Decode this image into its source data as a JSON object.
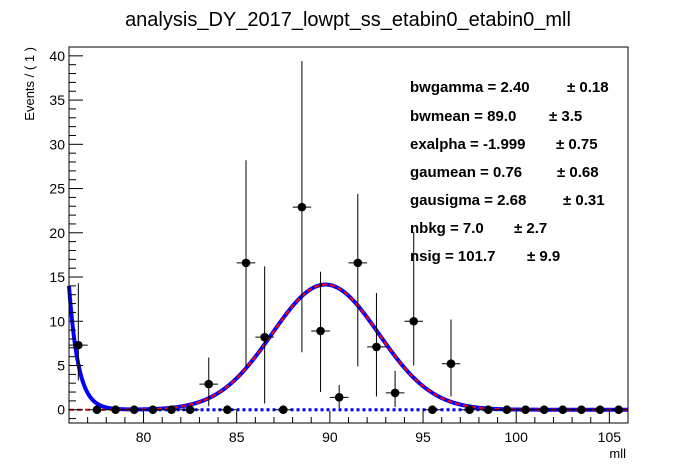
{
  "chart_data": {
    "type": "scatter",
    "title": "analysis_DY_2017_lowpt_ss_etabin0_etabin0_mll",
    "xlabel": "mll",
    "ylabel": "Events / ( 1 )",
    "xlim": [
      76,
      106
    ],
    "ylim": [
      -1.5,
      41
    ],
    "x_ticks": [
      80,
      85,
      90,
      95,
      100,
      105
    ],
    "y_ticks": [
      0,
      5,
      10,
      15,
      20,
      25,
      30,
      35,
      40
    ],
    "grid": false,
    "points": {
      "x": [
        76.5,
        77.5,
        78.5,
        79.5,
        80.5,
        81.5,
        82.5,
        83.5,
        84.5,
        85.5,
        86.5,
        87.5,
        88.5,
        89.5,
        90.5,
        91.5,
        92.5,
        93.5,
        94.5,
        95.5,
        96.5,
        97.5,
        98.5,
        99.5,
        100.5,
        101.5,
        102.5,
        103.5,
        104.5,
        105.5
      ],
      "y": [
        7.3,
        0,
        0,
        0,
        0,
        0,
        0,
        2.9,
        0,
        16.6,
        8.2,
        0,
        22.9,
        8.9,
        1.4,
        16.6,
        7.1,
        1.9,
        10.0,
        0,
        5.2,
        0,
        0,
        0,
        0,
        0,
        0,
        0,
        0,
        0
      ],
      "err_low": [
        4.0,
        0,
        0,
        0,
        0,
        0,
        0,
        2.5,
        0,
        11.7,
        7.5,
        0,
        16.4,
        6.9,
        1.2,
        11.7,
        5.6,
        1.6,
        5.0,
        0,
        3.7,
        0,
        0,
        0,
        0,
        0,
        0,
        0,
        0,
        0
      ],
      "err_high": [
        7.0,
        0,
        0,
        0,
        0,
        0,
        0,
        3.0,
        0,
        11.6,
        8.0,
        0,
        16.5,
        6.7,
        1.4,
        7.8,
        6.1,
        2.5,
        10.1,
        0,
        5.0,
        0,
        0,
        0,
        0,
        0,
        0,
        0,
        0,
        0
      ]
    },
    "fit_params": {
      "bwgamma": 2.4,
      "bwmean": 89.0,
      "exalpha": -1.999,
      "gaumean": 0.76,
      "gausigma": 2.68,
      "nbkg": 7.0,
      "nsig": 101.7
    },
    "colors": {
      "total_fit": "#0000ff",
      "signal": "#ff0000",
      "background": "#0000ff",
      "points": "#000000"
    }
  },
  "params": [
    {
      "label": "bwgamma =  2.40",
      "err": "± 0.18"
    },
    {
      "label": "bwmean =  89.0",
      "err": "± 3.5"
    },
    {
      "label": "exalpha = -1.999",
      "err": "± 0.75"
    },
    {
      "label": "gaumean =  0.76",
      "err": "± 0.68"
    },
    {
      "label": "gausigma =  2.68",
      "err": "± 0.31"
    },
    {
      "label": "nbkg =  7.0",
      "err": "± 2.7"
    },
    {
      "label": "nsig =  101.7",
      "err": "± 9.9"
    }
  ]
}
